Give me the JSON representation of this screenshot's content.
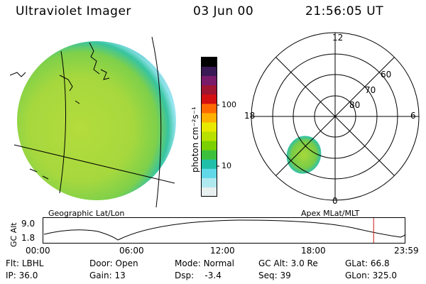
{
  "header": {
    "instrument": "Ultraviolet Imager",
    "date": "03 Jun 00",
    "time": "21:56:05 UT"
  },
  "geo_panel": {
    "label": "Geographic Lat/Lon"
  },
  "colorbar": {
    "label": "photon cm⁻²s⁻¹",
    "ticks": [
      "100",
      "10"
    ],
    "colors": [
      "#000000",
      "#3a1a55",
      "#7a1b6a",
      "#a01530",
      "#d41010",
      "#ff6a00",
      "#ffb000",
      "#e8e800",
      "#b8e000",
      "#7ad000",
      "#3cc03c",
      "#20c0a8",
      "#60d8e8",
      "#b0e8f0",
      "#e8f0f0"
    ]
  },
  "polar_panel": {
    "label": "Apex MLat/MLT",
    "mlt_labels": {
      "top": "12",
      "bottom": "0",
      "left": "18",
      "right": "6"
    },
    "lat_labels": [
      "60",
      "70",
      "80"
    ]
  },
  "altitude_plot": {
    "ylabel": "GC Alt",
    "yticks": [
      "9.0",
      "1.8"
    ],
    "xticks": [
      "00:00",
      "06:00",
      "12:00",
      "18:00",
      "23:59"
    ],
    "current_time_fraction": 0.914
  },
  "info": {
    "flt_label": "Flt:",
    "flt_value": "LBHL",
    "door_label": "Door:",
    "door_value": "Open",
    "mode_label": "Mode:",
    "mode_value": "Normal",
    "gcalt_label": "GC Alt:",
    "gcalt_value": "3.0 Re",
    "glat_label": "GLat:",
    "glat_value": "66.8",
    "ip_label": "IP:",
    "ip_value": "36.0",
    "gain_label": "Gain:",
    "gain_value": "13",
    "dsp_label": "Dsp:",
    "dsp_value": "-3.4",
    "seq_label": "Seq:",
    "seq_value": "39",
    "glon_label": "GLon:",
    "glon_value": "325.0"
  }
}
